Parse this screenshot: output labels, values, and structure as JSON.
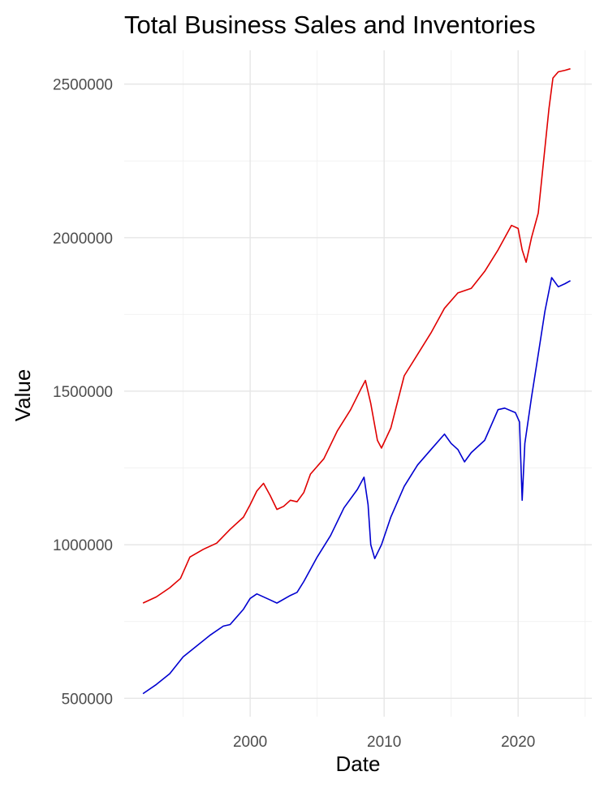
{
  "chart_data": {
    "type": "line",
    "title": "Total Business Sales and Inventories",
    "xlabel": "Date",
    "ylabel": "Value",
    "xlim": [
      1990.6,
      2025.5
    ],
    "ylim": [
      440000,
      2610000
    ],
    "x_ticks": [
      2000,
      2010,
      2020
    ],
    "x_tick_labels": [
      "2000",
      "2010",
      "2020"
    ],
    "x_minor_ticks": [
      1995,
      2005,
      2015,
      2025
    ],
    "y_ticks": [
      500000,
      1000000,
      1500000,
      2000000,
      2500000
    ],
    "y_tick_labels": [
      "500000",
      "1000000",
      "1500000",
      "2000000",
      "2500000"
    ],
    "y_minor_ticks": [
      750000,
      1250000,
      1750000,
      2250000
    ],
    "grid": true,
    "legend": "none",
    "series": [
      {
        "color": "#e00000",
        "points": [
          [
            1992.0,
            810000
          ],
          [
            1993.0,
            830000
          ],
          [
            1994.0,
            860000
          ],
          [
            1994.8,
            890000
          ],
          [
            1995.5,
            960000
          ],
          [
            1996.5,
            985000
          ],
          [
            1997.5,
            1005000
          ],
          [
            1998.5,
            1050000
          ],
          [
            1999.5,
            1090000
          ],
          [
            2000.0,
            1130000
          ],
          [
            2000.5,
            1175000
          ],
          [
            2001.0,
            1200000
          ],
          [
            2001.5,
            1160000
          ],
          [
            2002.0,
            1115000
          ],
          [
            2002.5,
            1125000
          ],
          [
            2003.0,
            1145000
          ],
          [
            2003.5,
            1140000
          ],
          [
            2004.0,
            1170000
          ],
          [
            2004.5,
            1230000
          ],
          [
            2005.5,
            1280000
          ],
          [
            2006.5,
            1370000
          ],
          [
            2007.5,
            1440000
          ],
          [
            2008.3,
            1510000
          ],
          [
            2008.6,
            1535000
          ],
          [
            2009.0,
            1460000
          ],
          [
            2009.5,
            1340000
          ],
          [
            2009.8,
            1315000
          ],
          [
            2010.5,
            1380000
          ],
          [
            2011.5,
            1550000
          ],
          [
            2012.5,
            1620000
          ],
          [
            2013.5,
            1690000
          ],
          [
            2014.5,
            1770000
          ],
          [
            2015.5,
            1820000
          ],
          [
            2016.5,
            1835000
          ],
          [
            2017.5,
            1890000
          ],
          [
            2018.5,
            1960000
          ],
          [
            2019.5,
            2040000
          ],
          [
            2020.0,
            2030000
          ],
          [
            2020.3,
            1960000
          ],
          [
            2020.6,
            1920000
          ],
          [
            2021.0,
            2000000
          ],
          [
            2021.5,
            2080000
          ],
          [
            2021.9,
            2250000
          ],
          [
            2022.3,
            2420000
          ],
          [
            2022.6,
            2520000
          ],
          [
            2023.0,
            2540000
          ],
          [
            2023.5,
            2545000
          ],
          [
            2023.9,
            2550000
          ]
        ]
      },
      {
        "color": "#0000d0",
        "points": [
          [
            1992.0,
            515000
          ],
          [
            1993.0,
            545000
          ],
          [
            1994.0,
            580000
          ],
          [
            1995.0,
            635000
          ],
          [
            1996.0,
            670000
          ],
          [
            1997.0,
            705000
          ],
          [
            1998.0,
            735000
          ],
          [
            1998.5,
            740000
          ],
          [
            1999.5,
            790000
          ],
          [
            2000.0,
            825000
          ],
          [
            2000.5,
            840000
          ],
          [
            2001.5,
            820000
          ],
          [
            2002.0,
            810000
          ],
          [
            2003.0,
            835000
          ],
          [
            2003.5,
            845000
          ],
          [
            2004.0,
            880000
          ],
          [
            2005.0,
            960000
          ],
          [
            2006.0,
            1030000
          ],
          [
            2007.0,
            1120000
          ],
          [
            2008.0,
            1180000
          ],
          [
            2008.5,
            1220000
          ],
          [
            2008.8,
            1130000
          ],
          [
            2009.0,
            1000000
          ],
          [
            2009.3,
            955000
          ],
          [
            2009.8,
            1000000
          ],
          [
            2010.5,
            1090000
          ],
          [
            2011.5,
            1190000
          ],
          [
            2012.5,
            1260000
          ],
          [
            2013.5,
            1310000
          ],
          [
            2014.5,
            1360000
          ],
          [
            2015.0,
            1330000
          ],
          [
            2015.5,
            1310000
          ],
          [
            2016.0,
            1270000
          ],
          [
            2016.5,
            1300000
          ],
          [
            2017.5,
            1340000
          ],
          [
            2018.5,
            1440000
          ],
          [
            2019.0,
            1445000
          ],
          [
            2019.8,
            1430000
          ],
          [
            2020.1,
            1400000
          ],
          [
            2020.3,
            1145000
          ],
          [
            2020.5,
            1330000
          ],
          [
            2021.0,
            1480000
          ],
          [
            2021.5,
            1620000
          ],
          [
            2022.0,
            1760000
          ],
          [
            2022.5,
            1870000
          ],
          [
            2023.0,
            1840000
          ],
          [
            2023.5,
            1850000
          ],
          [
            2023.9,
            1860000
          ]
        ]
      }
    ]
  }
}
